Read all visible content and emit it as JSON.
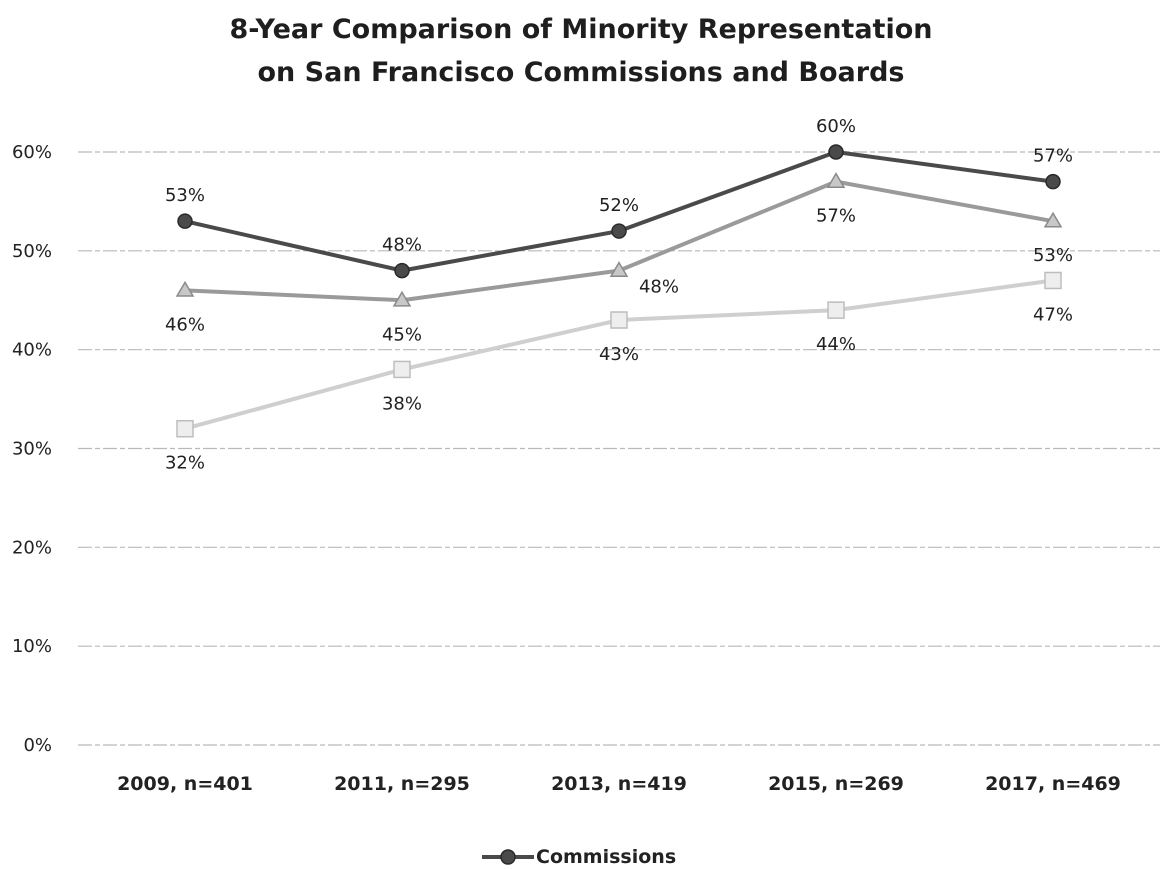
{
  "chart_data": {
    "type": "line",
    "title_lines": [
      "8-Year Comparison of Minority Representation",
      "on San Francisco Commissions and Boards"
    ],
    "categories": [
      "2009, n=401",
      "2011, n=295",
      "2013, n=419",
      "2015, n=269",
      "2017, n=469"
    ],
    "ylim": [
      0,
      60
    ],
    "yticks": [
      "0%",
      "10%",
      "20%",
      "30%",
      "40%",
      "50%",
      "60%"
    ],
    "grid": true,
    "legend_position": "bottom",
    "series": [
      {
        "name": "Commissions",
        "marker": "circle",
        "color": "#4a4a4a",
        "values": [
          53,
          48,
          52,
          60,
          57
        ],
        "labels": [
          "53%",
          "48%",
          "52%",
          "60%",
          "57%"
        ],
        "label_pos": [
          "above",
          "above",
          "above",
          "above",
          "above"
        ]
      },
      {
        "marker": "triangle",
        "color": "#9a9a9a",
        "values": [
          46,
          45,
          48,
          57,
          53
        ],
        "labels": [
          "46%",
          "45%",
          "48%",
          "57%",
          "53%"
        ],
        "label_pos": [
          "below",
          "below",
          "below-right",
          "below",
          "below"
        ]
      },
      {
        "marker": "square",
        "color": "#cfcfcf",
        "values": [
          32,
          38,
          43,
          44,
          47
        ],
        "labels": [
          "32%",
          "38%",
          "43%",
          "44%",
          "47%"
        ],
        "label_pos": [
          "below",
          "below",
          "below",
          "below",
          "below"
        ]
      }
    ]
  }
}
